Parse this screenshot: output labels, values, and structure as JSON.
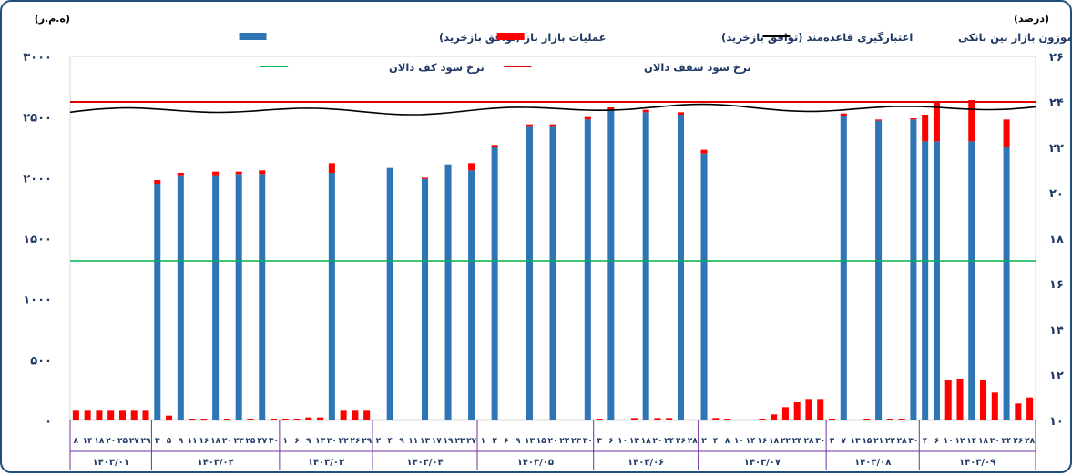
{
  "chart_data": {
    "type": "bar",
    "unit_left": "(ه.م.ر)",
    "unit_right": "(درصد)",
    "legend": {
      "open_market": "عملیات بازار باز (توافق بازخرید)",
      "standing_facility": "اعتبارگیری قاعده‌مند (توافق بازخرید)",
      "interbank_rate": "نرخ سود موزون بازار بین بانکی",
      "corridor_ceiling": "نرخ سود سقف دالان",
      "corridor_floor": "نرخ سود کف دالان"
    },
    "colors": {
      "open_market": "#2e75b6",
      "standing_facility": "#ff0000",
      "interbank_rate": "#000000",
      "corridor_ceiling": "#e00000",
      "corridor_floor": "#00b050",
      "axis_text": "#1f3864",
      "group_border": "#7030a0"
    },
    "y_left": {
      "min": 0,
      "max": 3000,
      "ticks": [
        "۰",
        "۵۰۰",
        "۱۰۰۰",
        "۱۵۰۰",
        "۲۰۰۰",
        "۲۵۰۰",
        "۳۰۰۰"
      ]
    },
    "y_right": {
      "min": 10,
      "max": 26,
      "ticks": [
        "۱۰",
        "۱۲",
        "۱۴",
        "۱۶",
        "۱۸",
        "۲۰",
        "۲۲",
        "۲۴",
        "۲۶"
      ]
    },
    "corridor_ceiling_value": 24,
    "corridor_floor_value": 17,
    "months": [
      {
        "label": "۱۴۰۳/۰۱",
        "days": [
          "۸",
          "۱۴",
          "۱۸",
          "۲۰",
          "۲۵",
          "۲۷",
          "۲۹"
        ],
        "open": [
          0,
          0,
          0,
          0,
          0,
          0,
          0
        ],
        "facility": [
          80,
          80,
          80,
          80,
          80,
          80,
          80
        ]
      },
      {
        "label": "۱۴۰۳/۰۲",
        "days": [
          "۳",
          "۵",
          "۹",
          "۱۱",
          "۱۶",
          "۱۸",
          "۲۰",
          "۲۳",
          "۲۵",
          "۲۷",
          "۳۰"
        ],
        "open": [
          1950,
          0,
          2020,
          0,
          0,
          2020,
          0,
          2030,
          0,
          2030,
          0
        ],
        "facility": [
          30,
          40,
          20,
          10,
          10,
          30,
          10,
          20,
          10,
          30,
          10
        ]
      },
      {
        "label": "۱۴۰۳/۰۳",
        "days": [
          "۱",
          "۶",
          "۹",
          "۱۳",
          "۲۰",
          "۲۲",
          "۲۶",
          "۲۹"
        ],
        "open": [
          0,
          0,
          0,
          0,
          2040,
          0,
          0,
          0
        ],
        "facility": [
          10,
          10,
          25,
          25,
          80,
          80,
          80,
          80
        ]
      },
      {
        "label": "۱۴۰۳/۰۴",
        "days": [
          "۲",
          "۴",
          "۹",
          "۱۱",
          "۱۳",
          "۱۷",
          "۱۹",
          "۲۳",
          "۲۷"
        ],
        "open": [
          0,
          2080,
          0,
          0,
          1990,
          0,
          2110,
          0,
          2060
        ],
        "facility": [
          0,
          0,
          0,
          0,
          10,
          0,
          0,
          0,
          60
        ]
      },
      {
        "label": "۱۴۰۳/۰۵",
        "days": [
          "۱",
          "۲",
          "۶",
          "۹",
          "۱۳",
          "۱۵",
          "۲۰",
          "۲۲",
          "۲۳",
          "۳۰"
        ],
        "open": [
          0,
          2250,
          0,
          0,
          2420,
          0,
          2420,
          0,
          0,
          2480
        ],
        "facility": [
          0,
          20,
          0,
          0,
          20,
          0,
          20,
          0,
          0,
          20
        ]
      },
      {
        "label": "۱۴۰۳/۰۶",
        "days": [
          "۳",
          "۶",
          "۱۰",
          "۱۳",
          "۱۸",
          "۲۰",
          "۲۴",
          "۲۶",
          "۲۸"
        ],
        "open": [
          0,
          2560,
          0,
          0,
          2540,
          0,
          0,
          2520,
          0
        ],
        "facility": [
          10,
          20,
          0,
          20,
          20,
          20,
          20,
          20,
          0
        ]
      },
      {
        "label": "۱۴۰۳/۰۷",
        "days": [
          "۲",
          "۴",
          "۸",
          "۱۰",
          "۱۴",
          "۱۶",
          "۱۸",
          "۲۲",
          "۲۴",
          "۲۸",
          "۳۰"
        ],
        "open": [
          2200,
          0,
          0,
          0,
          0,
          0,
          0,
          0,
          0,
          0,
          0
        ],
        "facility": [
          30,
          20,
          10,
          0,
          0,
          10,
          50,
          110,
          150,
          170,
          170
        ]
      },
      {
        "label": "۱۴۰۳/۰۸",
        "days": [
          "۲",
          "۷",
          "۱۳",
          "۱۵",
          "۲۱",
          "۲۲",
          "۲۸",
          "۳۰"
        ],
        "open": [
          0,
          2510,
          0,
          0,
          2470,
          0,
          0,
          2480
        ],
        "facility": [
          10,
          20,
          0,
          10,
          10,
          10,
          10,
          10
        ]
      },
      {
        "label": "۱۴۰۳/۰۹",
        "days": [
          "۴",
          "۶",
          "۱۰",
          "۱۲",
          "۱۴",
          "۱۸",
          "۲۰",
          "۲۴",
          "۲۶",
          "۲۸"
        ],
        "open": [
          2300,
          2300,
          0,
          0,
          2300,
          0,
          0,
          2250,
          0,
          0
        ],
        "facility": [
          220,
          330,
          330,
          340,
          340,
          330,
          230,
          230,
          140,
          190
        ]
      }
    ]
  }
}
